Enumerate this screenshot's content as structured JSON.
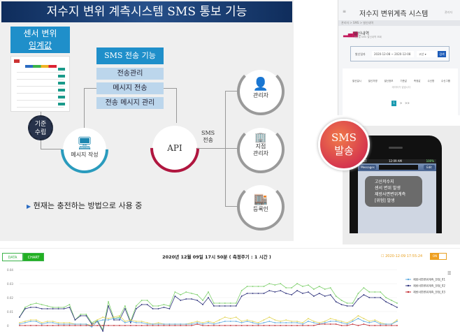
{
  "slide": {
    "title": "저수지 변위 계측시스템 SMS 통보 기능",
    "sensor_box": [
      "센서 변위",
      "임계값"
    ],
    "standard_badge": [
      "기준",
      "수립"
    ],
    "compose_label": "메시지 작성",
    "sms_function": {
      "title": "SMS 전송 기능",
      "items": [
        "전송관리",
        "메시지 전송",
        "전송 메시지 관리"
      ]
    },
    "api_label": "API",
    "sms_send_label": [
      "SMS",
      "전송"
    ],
    "recipients": [
      {
        "label": [
          "관리자"
        ]
      },
      {
        "label": [
          "지점",
          "관리자"
        ]
      },
      {
        "label": [
          "등록인"
        ]
      }
    ],
    "note": "현재는 충전하는 방법으로 사용 중",
    "colors": {
      "banner": "#1b3f73",
      "blue_box": "#1f8fca",
      "compose_arc": "#2a9bbd",
      "api_arc": "#b0163f",
      "recipient_arc": "#9a9a9a"
    }
  },
  "web": {
    "title": "저수지 변위계측 시스템",
    "user": "관리자",
    "breadcrumb": "관리자 > SMS > 발신내역",
    "section_title": "발신내역",
    "section_sub": "기간별 SMS 발신내역 조회",
    "filter": {
      "label": "발신일자",
      "date_range": "2020-12-08 ~ 2020-12-08",
      "site": "고산",
      "search": "검색"
    },
    "columns": [
      "발신일시",
      "발신자명",
      "발신정보",
      "기준값",
      "측정값",
      "수신명",
      "수신그룹"
    ],
    "empty": "데이터가 없습니다",
    "pages": [
      "1",
      ">",
      ">>"
    ]
  },
  "badge": [
    "SMS",
    "발송"
  ],
  "phone": {
    "carrier": "AT&T",
    "time": "12:09 AM",
    "battery": "100%",
    "back": "Messages",
    "edit": "Edit",
    "message": [
      "고산저수지",
      "센서 변위 발생",
      "제방사면변위계측",
      "[위험] 발생"
    ]
  },
  "chart_header": {
    "tabs": [
      "DATA",
      "CHART"
    ],
    "active_tab": "CHART",
    "title": "2020년 12월 09일 17시 50분 ( 측정주기 : 1 시간 )",
    "timestamp": "2020-12-09 17:55:24",
    "toggle": "ON"
  },
  "chart_data": {
    "type": "line",
    "ylim": [
      -0.006,
      0.04
    ],
    "yticks": [
      "0",
      "0.01",
      "0.02",
      "0.03",
      "0.04"
    ],
    "grid": true,
    "legend_placement": "right",
    "series": [
      {
        "color": "#7ccf6a",
        "values": [
          0.006,
          0.013,
          0.015,
          0.016,
          0.015,
          0.014,
          0.013,
          0.013,
          0.013,
          0.015,
          0.004,
          0.008,
          0.008,
          0.002,
          0.004,
          -0.003,
          0.017,
          0.005,
          0.006,
          0.014,
          0.003,
          0.014,
          0.018,
          0.018,
          0.014,
          0.014,
          0.015,
          0.014,
          0.024,
          0.022,
          0.024,
          0.023,
          0.022,
          0.018,
          0.024,
          0.016,
          0.016,
          0.016,
          0.016,
          0.016,
          0.025,
          0.028,
          0.028,
          0.028,
          0.028,
          0.03,
          0.029,
          0.03,
          0.027,
          0.027,
          0.03,
          0.028,
          0.029,
          0.026,
          0.028,
          0.026,
          0.027,
          0.021,
          0.018,
          0.016,
          0.016,
          0.023,
          0.027,
          0.024,
          0.024,
          0.024,
          0.02,
          0.018,
          0.016
        ]
      },
      {
        "name": "제방사면변위계측_전점_02",
        "color": "#2b2f7a",
        "values": [
          0.006,
          0.012,
          0.013,
          0.013,
          0.012,
          0.012,
          0.012,
          0.012,
          0.012,
          0.013,
          0.004,
          0.007,
          0.007,
          0.001,
          0.003,
          -0.004,
          0.014,
          0.004,
          0.004,
          0.012,
          0.002,
          0.012,
          0.015,
          0.015,
          0.012,
          0.012,
          0.013,
          0.012,
          0.021,
          0.018,
          0.019,
          0.019,
          0.018,
          0.015,
          0.02,
          0.014,
          0.014,
          0.014,
          0.014,
          0.014,
          0.021,
          0.023,
          0.023,
          0.023,
          0.023,
          0.025,
          0.024,
          0.025,
          0.023,
          0.022,
          0.025,
          0.023,
          0.024,
          0.021,
          0.023,
          0.021,
          0.022,
          0.017,
          0.015,
          0.014,
          0.014,
          0.019,
          0.022,
          0.02,
          0.02,
          0.02,
          0.017,
          0.015,
          0.013
        ]
      },
      {
        "color": "#e2d55a",
        "values": [
          0.002,
          0.003,
          0.004,
          0.004,
          0.002,
          0.003,
          0.003,
          0.002,
          0.002,
          0.002,
          0.001,
          0.001,
          0.001,
          0.0,
          0.004,
          0.006,
          0.005,
          0.006,
          0.007,
          0.003,
          0.004,
          0.003,
          0.003,
          0.002,
          0.001,
          0.002,
          0.001,
          0.001,
          0.001,
          0.001,
          0.001,
          0.002,
          0.003,
          0.002,
          0.003,
          0.002,
          0.004,
          0.006,
          0.005,
          0.006,
          0.003,
          0.004,
          0.003,
          0.002,
          0.004,
          0.006,
          0.004,
          0.003,
          0.004,
          0.003,
          0.003,
          0.002,
          0.005,
          0.003,
          0.002,
          0.003,
          0.005,
          0.004,
          0.003,
          0.002,
          0.004,
          0.007,
          0.005,
          0.003,
          0.004,
          0.002,
          0.001,
          0.001,
          0.004
        ]
      },
      {
        "name": "제방사면변위계측_전점_01",
        "color": "#5aa9e0",
        "values": [
          0.001,
          0.002,
          0.003,
          0.003,
          0.001,
          0.002,
          0.002,
          0.001,
          0.001,
          0.001,
          0.001,
          0.001,
          0.001,
          -0.001,
          0.003,
          0.004,
          0.004,
          0.005,
          0.005,
          0.002,
          0.003,
          0.002,
          0.002,
          0.001,
          0.001,
          0.001,
          0.001,
          0.001,
          0.001,
          0.001,
          0.001,
          0.001,
          0.002,
          0.001,
          0.002,
          0.001,
          0.002,
          0.003,
          0.003,
          0.003,
          0.002,
          0.003,
          0.002,
          0.001,
          0.002,
          0.003,
          0.002,
          0.002,
          0.002,
          0.002,
          0.002,
          0.001,
          0.003,
          0.002,
          0.001,
          0.002,
          0.003,
          0.003,
          0.002,
          0.001,
          0.003,
          0.005,
          0.003,
          0.002,
          0.003,
          0.001,
          0.001,
          0.001,
          0.003
        ]
      },
      {
        "name": "제방사면변위계측_전점_03",
        "color": "#c0262d",
        "values": [
          0,
          0,
          0,
          0,
          0,
          0,
          0,
          0,
          0,
          0,
          0,
          0,
          0,
          0,
          0,
          0,
          0,
          0,
          0,
          0,
          0,
          0,
          0,
          0,
          0,
          0,
          0,
          0,
          0,
          0,
          0,
          0,
          0.001,
          0,
          0,
          0,
          0,
          0,
          0,
          0,
          0,
          0,
          0,
          0,
          0,
          0,
          0,
          0,
          0,
          0,
          0,
          0,
          0,
          0,
          0.001,
          0.001,
          0.001,
          0.001,
          0,
          0,
          0.001,
          0,
          0.001,
          0,
          0,
          0,
          0,
          0,
          0
        ]
      }
    ],
    "legend": [
      "제방사면변위계측_전점_01",
      "제방사면변위계측_전점_02",
      "제방사면변위계측_전점_03"
    ]
  }
}
